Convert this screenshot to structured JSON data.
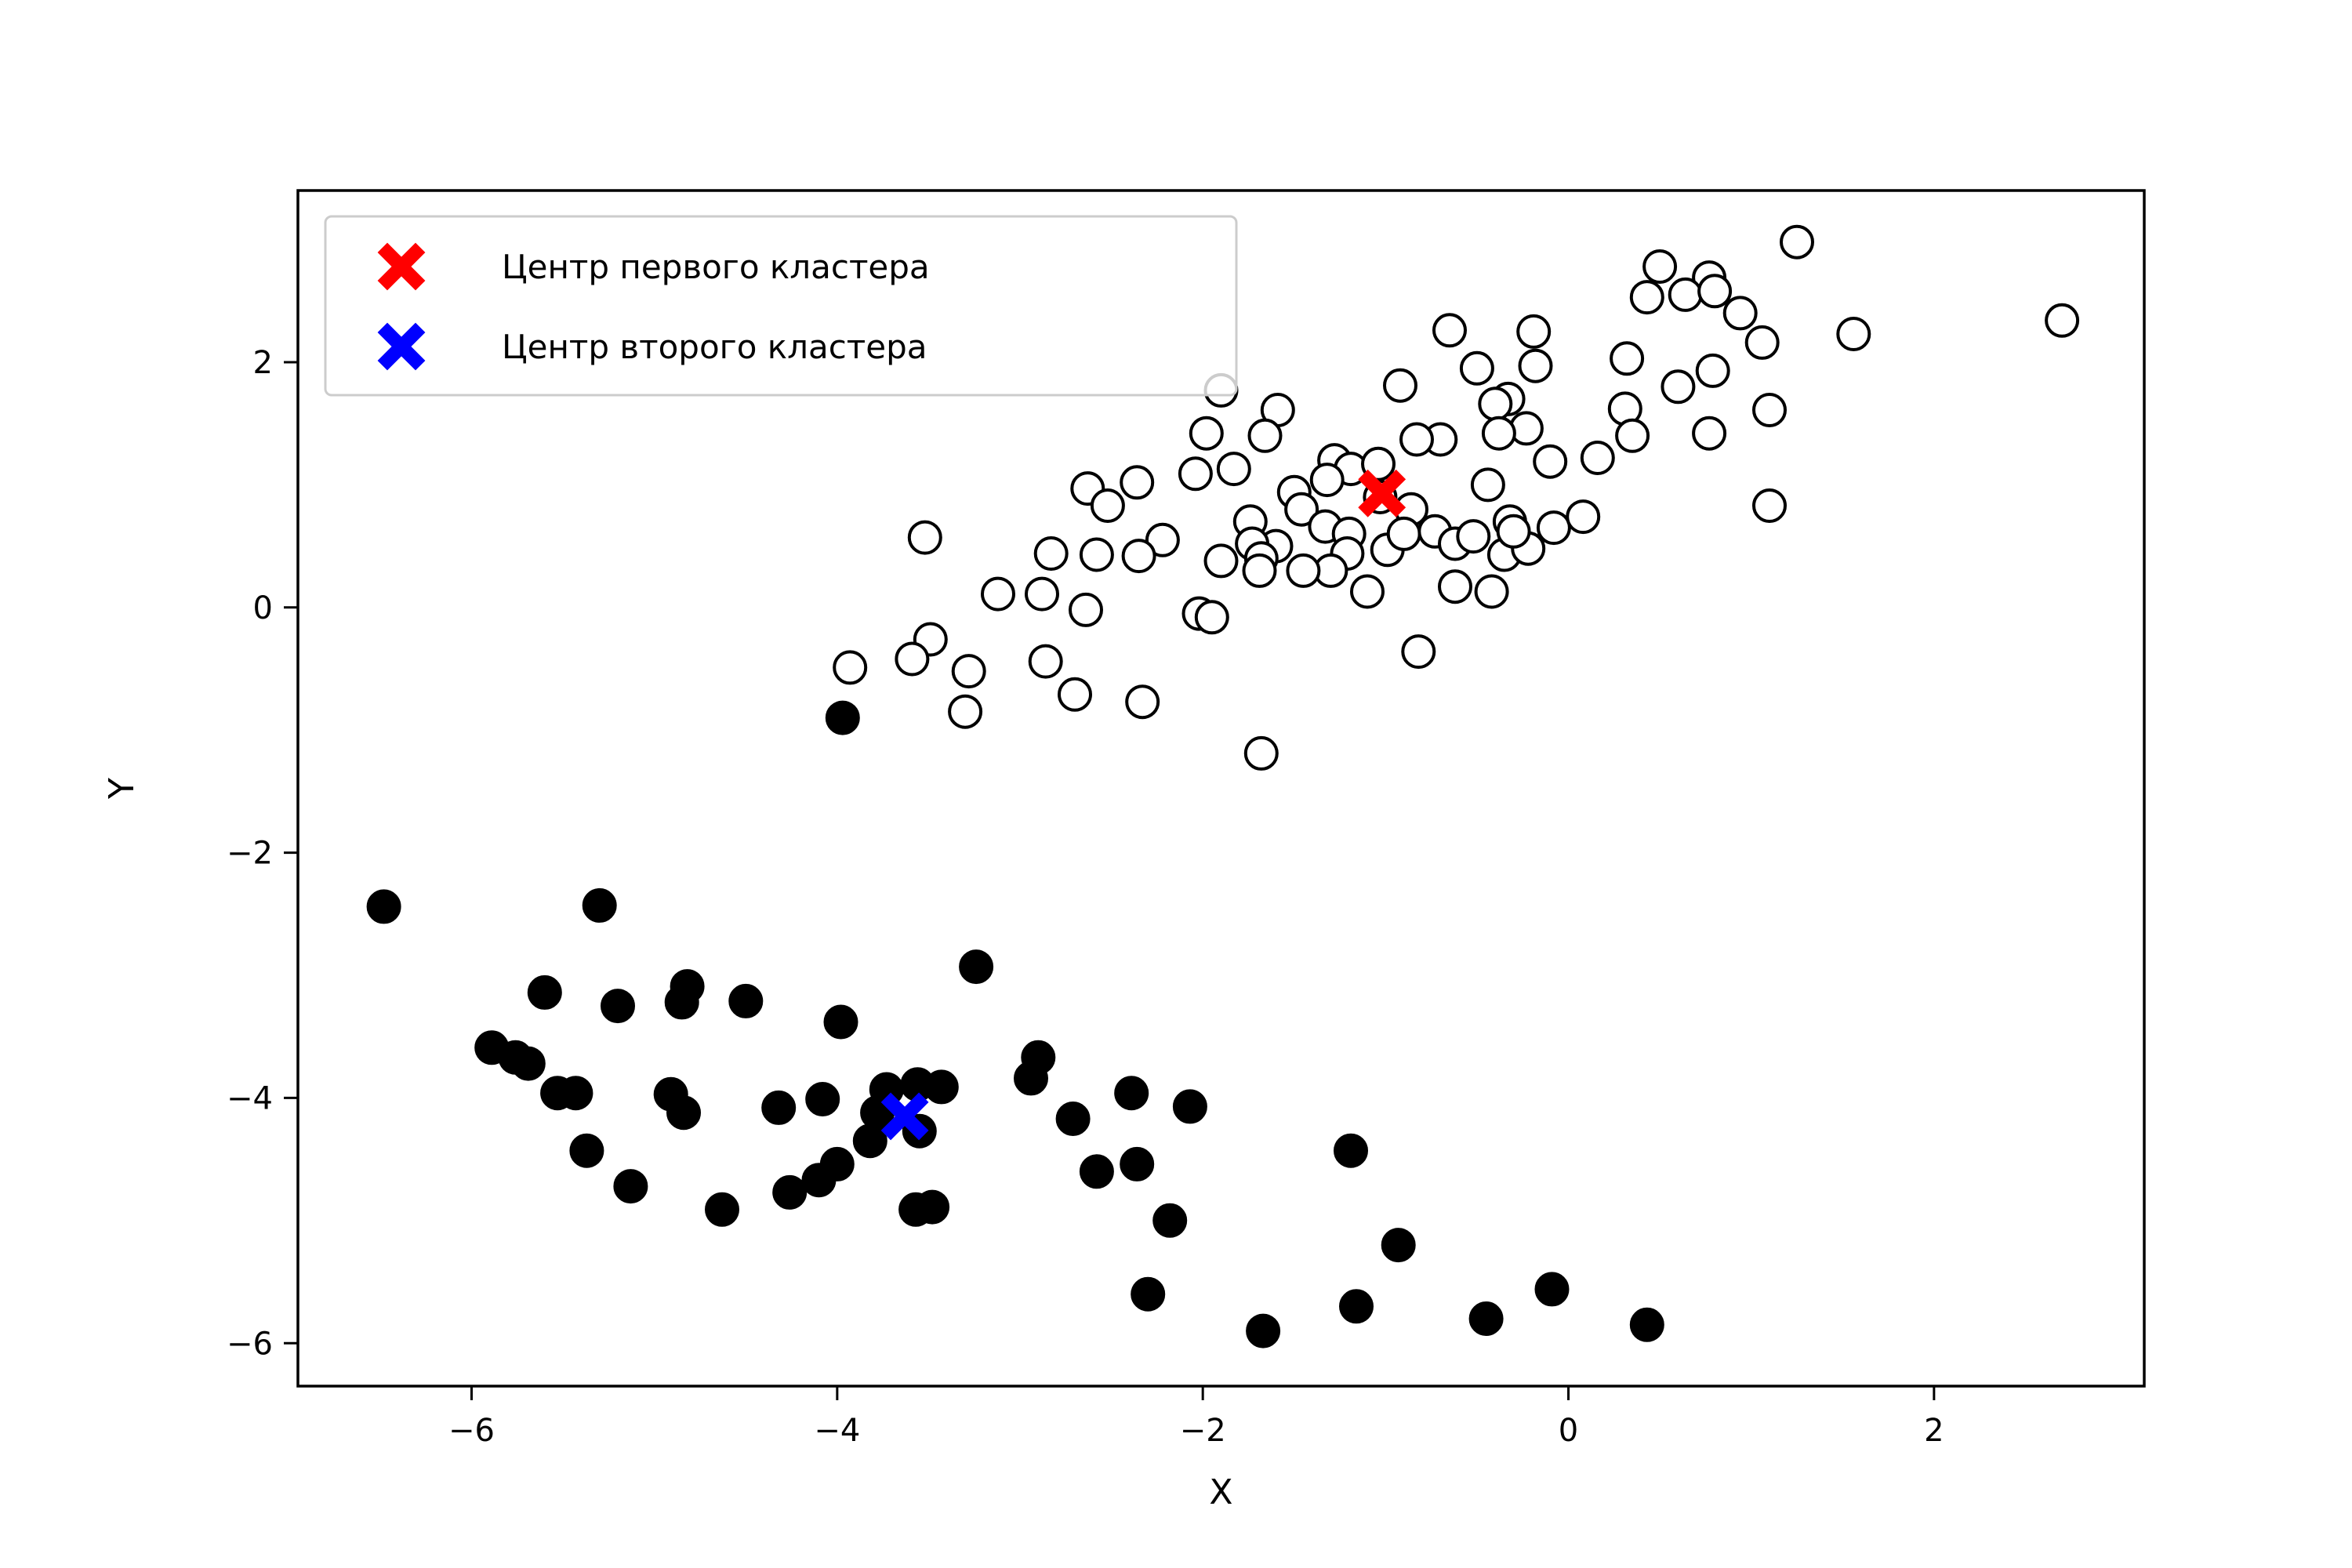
{
  "chart_data": {
    "type": "scatter",
    "xlabel": "X",
    "ylabel": "Y",
    "xlim": [
      -6.95,
      3.15
    ],
    "ylim": [
      -6.35,
      3.4
    ],
    "xticks": [
      -6,
      -4,
      -2,
      0,
      2
    ],
    "yticks": [
      -6,
      -4,
      -2,
      0,
      2
    ],
    "xtick_labels": [
      "−6",
      "−4",
      "−2",
      "0",
      "2"
    ],
    "ytick_labels": [
      "−6",
      "−4",
      "−2",
      "0",
      "2"
    ],
    "grid": false,
    "legend_position": "top-left",
    "legend": [
      {
        "label": "Центр первого кластера",
        "color": "#ff0000",
        "marker": "X"
      },
      {
        "label": "Центр второго кластера",
        "color": "#0000ff",
        "marker": "X"
      }
    ],
    "series": [
      {
        "style": "hollow",
        "edge_color": "#000000",
        "face_color": "#ffffff",
        "points": [
          [
            0.5,
            2.78
          ],
          [
            0.77,
            2.69
          ],
          [
            1.25,
            2.98
          ],
          [
            0.43,
            2.53
          ],
          [
            0.64,
            2.55
          ],
          [
            0.8,
            2.58
          ],
          [
            0.94,
            2.4
          ],
          [
            1.06,
            2.16
          ],
          [
            1.56,
            2.23
          ],
          [
            2.7,
            2.34
          ],
          [
            -0.65,
            2.26
          ],
          [
            -0.19,
            2.25
          ],
          [
            -0.5,
            1.95
          ],
          [
            -0.18,
            1.97
          ],
          [
            -0.92,
            1.81
          ],
          [
            0.32,
            2.03
          ],
          [
            0.6,
            1.8
          ],
          [
            0.79,
            1.93
          ],
          [
            1.1,
            1.61
          ],
          [
            0.31,
            1.62
          ],
          [
            0.35,
            1.4
          ],
          [
            0.77,
            1.42
          ],
          [
            0.16,
            1.22
          ],
          [
            1.1,
            0.83
          ],
          [
            -1.59,
            1.61
          ],
          [
            -1.66,
            1.4
          ],
          [
            -1.9,
            1.77
          ],
          [
            -1.98,
            1.42
          ],
          [
            -1.83,
            1.13
          ],
          [
            -2.04,
            1.09
          ],
          [
            -2.36,
            1.02
          ],
          [
            -2.63,
            0.97
          ],
          [
            -2.52,
            0.83
          ],
          [
            -0.33,
            1.7
          ],
          [
            -0.4,
            1.66
          ],
          [
            -0.23,
            1.46
          ],
          [
            -0.38,
            1.42
          ],
          [
            -0.7,
            1.37
          ],
          [
            -0.83,
            1.37
          ],
          [
            -0.1,
            1.19
          ],
          [
            -1.28,
            1.2
          ],
          [
            -1.19,
            1.13
          ],
          [
            -1.04,
            1.17
          ],
          [
            -1.32,
            1.04
          ],
          [
            -1.5,
            0.94
          ],
          [
            -1.46,
            0.8
          ],
          [
            -1.03,
            0.9
          ],
          [
            -0.86,
            0.8
          ],
          [
            -0.44,
            1.0
          ],
          [
            -0.32,
            0.7
          ],
          [
            -0.08,
            0.65
          ],
          [
            0.08,
            0.74
          ],
          [
            -1.74,
            0.7
          ],
          [
            -1.6,
            0.5
          ],
          [
            -1.73,
            0.52
          ],
          [
            -1.68,
            0.4
          ],
          [
            -1.69,
            0.3
          ],
          [
            -1.9,
            0.38
          ],
          [
            -2.22,
            0.55
          ],
          [
            -2.35,
            0.42
          ],
          [
            -2.58,
            0.43
          ],
          [
            -2.83,
            0.44
          ],
          [
            -3.52,
            0.57
          ],
          [
            -1.33,
            0.66
          ],
          [
            -1.2,
            0.6
          ],
          [
            -1.21,
            0.44
          ],
          [
            -0.99,
            0.47
          ],
          [
            -0.9,
            0.6
          ],
          [
            -0.73,
            0.62
          ],
          [
            -0.62,
            0.52
          ],
          [
            -0.52,
            0.58
          ],
          [
            -0.35,
            0.43
          ],
          [
            -0.22,
            0.48
          ],
          [
            -0.3,
            0.62
          ],
          [
            -1.3,
            0.3
          ],
          [
            -1.45,
            0.3
          ],
          [
            -1.1,
            0.13
          ],
          [
            -0.62,
            0.17
          ],
          [
            -0.42,
            0.13
          ],
          [
            -3.12,
            0.11
          ],
          [
            -2.88,
            0.11
          ],
          [
            -2.64,
            -0.02
          ],
          [
            -2.02,
            -0.05
          ],
          [
            -1.95,
            -0.08
          ],
          [
            -3.49,
            -0.26
          ],
          [
            -3.59,
            -0.42
          ],
          [
            -3.93,
            -0.49
          ],
          [
            -3.28,
            -0.52
          ],
          [
            -2.86,
            -0.44
          ],
          [
            -2.7,
            -0.71
          ],
          [
            -3.3,
            -0.85
          ],
          [
            -2.33,
            -0.77
          ],
          [
            -0.82,
            -0.36
          ],
          [
            -1.68,
            -1.19
          ]
        ]
      },
      {
        "style": "filled",
        "edge_color": "#000000",
        "face_color": "#000000",
        "points": [
          [
            -3.97,
            -0.9
          ],
          [
            -6.48,
            -2.44
          ],
          [
            -5.3,
            -2.43
          ],
          [
            -3.24,
            -2.93
          ],
          [
            -5.6,
            -3.14
          ],
          [
            -4.82,
            -3.09
          ],
          [
            -4.85,
            -3.22
          ],
          [
            -4.5,
            -3.21
          ],
          [
            -5.2,
            -3.25
          ],
          [
            -3.98,
            -3.38
          ],
          [
            -5.89,
            -3.59
          ],
          [
            -5.76,
            -3.67
          ],
          [
            -5.69,
            -3.72
          ],
          [
            -2.9,
            -3.67
          ],
          [
            -2.94,
            -3.84
          ],
          [
            -5.53,
            -3.96
          ],
          [
            -5.43,
            -3.96
          ],
          [
            -4.91,
            -3.97
          ],
          [
            -3.73,
            -3.93
          ],
          [
            -3.56,
            -3.89
          ],
          [
            -3.43,
            -3.91
          ],
          [
            -4.08,
            -4.01
          ],
          [
            -4.32,
            -4.08
          ],
          [
            -2.39,
            -3.96
          ],
          [
            -2.07,
            -4.07
          ],
          [
            -4.84,
            -4.12
          ],
          [
            -3.78,
            -4.12
          ],
          [
            -3.55,
            -4.27
          ],
          [
            -2.71,
            -4.17
          ],
          [
            -3.82,
            -4.35
          ],
          [
            -5.37,
            -4.43
          ],
          [
            -4.0,
            -4.54
          ],
          [
            -4.1,
            -4.67
          ],
          [
            -2.36,
            -4.54
          ],
          [
            -2.58,
            -4.6
          ],
          [
            -1.19,
            -4.43
          ],
          [
            -5.13,
            -4.72
          ],
          [
            -4.26,
            -4.77
          ],
          [
            -4.63,
            -4.91
          ],
          [
            -3.57,
            -4.91
          ],
          [
            -3.48,
            -4.89
          ],
          [
            -2.18,
            -5.0
          ],
          [
            -0.93,
            -5.2
          ],
          [
            -2.3,
            -5.6
          ],
          [
            -0.09,
            -5.56
          ],
          [
            -1.16,
            -5.7
          ],
          [
            -0.45,
            -5.8
          ],
          [
            0.43,
            -5.85
          ],
          [
            -1.67,
            -5.9
          ]
        ]
      }
    ],
    "centers": [
      {
        "x": -1.02,
        "y": 0.93,
        "color": "#ff0000"
      },
      {
        "x": -3.63,
        "y": -4.15,
        "color": "#0000ff"
      }
    ]
  }
}
